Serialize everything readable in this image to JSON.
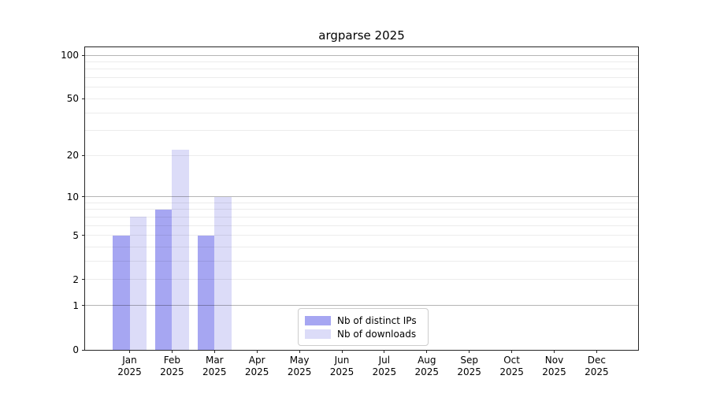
{
  "title": "argparse 2025",
  "legend": {
    "items": [
      {
        "label": "Nb of distinct IPs",
        "color": "#a6a6f2"
      },
      {
        "label": "Nb of downloads",
        "color": "#dcdcf8"
      }
    ]
  },
  "colors": {
    "bar_distinct_ips": "#a6a6f2",
    "bar_downloads": "#dcdcf8",
    "grid_major": "#b5b5b5",
    "grid_minor": "#ececec",
    "spine": "#262626",
    "background": "#ffffff",
    "text": "#000000"
  },
  "chart_data": {
    "type": "bar",
    "title": "argparse 2025",
    "x_tick_months": [
      "Jan",
      "Feb",
      "Mar",
      "Apr",
      "May",
      "Jun",
      "Jul",
      "Aug",
      "Sep",
      "Oct",
      "Nov",
      "Dec"
    ],
    "x_tick_year": "2025",
    "categories": [
      "Jan 2025",
      "Feb 2025",
      "Mar 2025",
      "Apr 2025",
      "May 2025",
      "Jun 2025",
      "Jul 2025",
      "Aug 2025",
      "Sep 2025",
      "Oct 2025",
      "Nov 2025",
      "Dec 2025"
    ],
    "series": [
      {
        "name": "Nb of distinct IPs",
        "color": "#a6a6f2",
        "values": [
          5,
          8,
          5,
          0,
          0,
          0,
          0,
          0,
          0,
          0,
          0,
          0
        ]
      },
      {
        "name": "Nb of downloads",
        "color": "#dcdcf8",
        "values": [
          7,
          22,
          10,
          0,
          0,
          0,
          0,
          0,
          0,
          0,
          0,
          0
        ]
      }
    ],
    "xlabel": "",
    "ylabel": "",
    "y_scale": "log1p",
    "y_ticks": [
      0,
      1,
      2,
      5,
      10,
      20,
      50,
      100
    ],
    "y_gridlines_major": [
      1,
      10,
      100
    ],
    "y_gridlines_minor": [
      2,
      3,
      4,
      5,
      6,
      7,
      8,
      9,
      20,
      30,
      40,
      50,
      60,
      70,
      80,
      90
    ],
    "ylim_top_value": 113,
    "grid": true,
    "legend_position": "lower center"
  }
}
